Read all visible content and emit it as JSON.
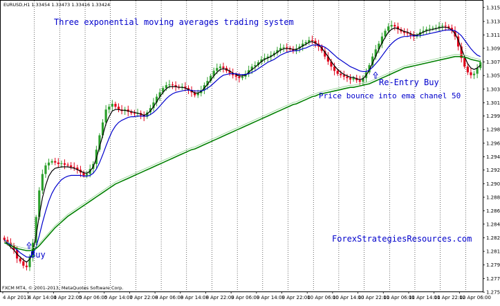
{
  "chart_data": {
    "type": "candlestick",
    "header": "EURUSD,H1  1.33454 1.33473 1.33416 1.33424",
    "footer": "FXCM MT4, © 2001-2013, MetaQuotes Software Corp.",
    "title": "Three exponential moving averages trading system",
    "watermark": "ForexStrategiesResources.com",
    "ylim": [
      1.2754,
      1.316
    ],
    "y_ticks": [
      "1.31505",
      "1.31310",
      "1.31120",
      "1.30935",
      "1.30745",
      "1.30555",
      "1.30365",
      "1.30175",
      "1.29990",
      "1.29800",
      "1.29610",
      "1.29420",
      "1.29235",
      "1.29045",
      "1.28855",
      "1.28665",
      "1.28480",
      "1.28290",
      "1.28100",
      "1.27910",
      "1.27720",
      "1.27530"
    ],
    "x_ticks": [
      "4 Apr 2013",
      "4 Apr 14:00",
      "4 Apr 22:00",
      "5 Apr 06:00",
      "5 Apr 14:00",
      "7 Apr 22:00",
      "8 Apr 06:00",
      "8 Apr 14:00",
      "8 Apr 22:00",
      "9 Apr 06:00",
      "9 Apr 14:00",
      "9 Apr 22:00",
      "10 Apr 06:00",
      "10 Apr 14:00",
      "10 Apr 22:00",
      "11 Apr 06:00",
      "11 Apr 14:00",
      "11 Apr 22:00",
      "12 Apr 06:00"
    ],
    "x_range": [
      "4 Apr 2013 06:00",
      "12 Apr 12:00"
    ],
    "bar_interval": "1 hour",
    "candles_close": [
      1.2826,
      1.2822,
      1.2818,
      1.2812,
      1.28,
      1.2796,
      1.279,
      1.2788,
      1.2802,
      1.2822,
      1.2858,
      1.2895,
      1.2918,
      1.293,
      1.2934,
      1.2936,
      1.2934,
      1.2932,
      1.2933,
      1.2931,
      1.293,
      1.2928,
      1.2927,
      1.2924,
      1.292,
      1.2916,
      1.2918,
      1.2925,
      1.2932,
      1.2952,
      1.2972,
      1.299,
      1.3008,
      1.3012,
      1.3016,
      1.3012,
      1.3008,
      1.3006,
      1.3008,
      1.3005,
      1.3003,
      1.3002,
      1.3003,
      1.3,
      1.2998,
      1.3004,
      1.301,
      1.3018,
      1.3026,
      1.3032,
      1.3038,
      1.3042,
      1.3043,
      1.3042,
      1.304,
      1.3039,
      1.304,
      1.3038,
      1.3035,
      1.3032,
      1.3028,
      1.3031,
      1.3035,
      1.3042,
      1.3048,
      1.3055,
      1.3062,
      1.3066,
      1.3068,
      1.3066,
      1.3062,
      1.3059,
      1.3056,
      1.3054,
      1.3052,
      1.3054,
      1.3058,
      1.3063,
      1.3068,
      1.307,
      1.3074,
      1.3078,
      1.308,
      1.3082,
      1.3084,
      1.3087,
      1.3091,
      1.3094,
      1.3095,
      1.3094,
      1.3092,
      1.309,
      1.3093,
      1.3096,
      1.31,
      1.3102,
      1.3105,
      1.3104,
      1.31,
      1.3096,
      1.309,
      1.3082,
      1.3075,
      1.3068,
      1.3062,
      1.3058,
      1.3056,
      1.3054,
      1.3052,
      1.305,
      1.3052,
      1.3049,
      1.3047,
      1.3052,
      1.306,
      1.307,
      1.3082,
      1.3092,
      1.31,
      1.311,
      1.3118,
      1.3124,
      1.3126,
      1.3124,
      1.312,
      1.3117,
      1.3115,
      1.3114,
      1.3112,
      1.311,
      1.3112,
      1.3116,
      1.3118,
      1.312,
      1.3121,
      1.3122,
      1.3122,
      1.3124,
      1.3125,
      1.3124,
      1.3122,
      1.3118,
      1.311,
      1.3096,
      1.308,
      1.3068,
      1.306,
      1.3056,
      1.3058,
      1.3066,
      1.3074
    ],
    "series": [
      {
        "color": "#000000",
        "values": [
          1.2826,
          1.282,
          1.2816,
          1.2812,
          1.2806,
          1.2802,
          1.2798,
          1.2795,
          1.2799,
          1.281,
          1.2832,
          1.286,
          1.2885,
          1.2902,
          1.2915,
          1.2922,
          1.2926,
          1.2927,
          1.2928,
          1.2928,
          1.2928,
          1.2927,
          1.2926,
          1.2924,
          1.2922,
          1.292,
          1.2919,
          1.2922,
          1.2928,
          1.294,
          1.2956,
          1.2972,
          1.2988,
          1.2998,
          1.3006,
          1.3008,
          1.3008,
          1.3007,
          1.3007,
          1.3006,
          1.3005,
          1.3004,
          1.3003,
          1.3002,
          1.3,
          1.3002,
          1.3006,
          1.3012,
          1.3019,
          1.3026,
          1.3032,
          1.3037,
          1.304,
          1.304,
          1.304,
          1.3039,
          1.3039,
          1.3038,
          1.3036,
          1.3034,
          1.3031,
          1.3031,
          1.3033,
          1.3038,
          1.3043,
          1.3049,
          1.3055,
          1.306,
          1.3064,
          1.3065,
          1.3064,
          1.3062,
          1.3059,
          1.3057,
          1.3055,
          1.3055,
          1.3056,
          1.306,
          1.3064,
          1.3067,
          1.3071,
          1.3075,
          1.3078,
          1.308,
          1.3082,
          1.3085,
          1.3088,
          1.3091,
          1.3093,
          1.3093,
          1.3093,
          1.3092,
          1.3092,
          1.3094,
          1.3097,
          1.3099,
          1.3102,
          1.3103,
          1.3101,
          1.3098,
          1.3094,
          1.3088,
          1.3082,
          1.3075,
          1.3069,
          1.3064,
          1.306,
          1.3057,
          1.3055,
          1.3053,
          1.3053,
          1.3051,
          1.305,
          1.3051,
          1.3056,
          1.3063,
          1.3073,
          1.3083,
          1.3092,
          1.3101,
          1.3109,
          1.3116,
          1.312,
          1.3122,
          1.3121,
          1.3119,
          1.3117,
          1.3116,
          1.3114,
          1.3112,
          1.3112,
          1.3114,
          1.3116,
          1.3118,
          1.3119,
          1.312,
          1.3121,
          1.3122,
          1.3123,
          1.3123,
          1.3122,
          1.3119,
          1.3114,
          1.3105,
          1.3093,
          1.3082,
          1.3072,
          1.3066,
          1.3064,
          1.3066,
          1.307
        ]
      },
      {
        "color": "#0000cc",
        "values": [
          1.2826,
          1.2822,
          1.2819,
          1.2816,
          1.2812,
          1.2808,
          1.2805,
          1.2802,
          1.2802,
          1.2806,
          1.2816,
          1.2832,
          1.285,
          1.2866,
          1.288,
          1.2891,
          1.2899,
          1.2905,
          1.291,
          1.2913,
          1.2915,
          1.2916,
          1.2916,
          1.2916,
          1.2916,
          1.2915,
          1.2915,
          1.2916,
          1.2919,
          1.2925,
          1.2934,
          1.2945,
          1.2957,
          1.2968,
          1.2978,
          1.2985,
          1.299,
          1.2993,
          1.2995,
          1.2997,
          1.2998,
          1.2998,
          1.2999,
          1.2999,
          1.2999,
          1.2999,
          1.3001,
          1.3004,
          1.3008,
          1.3013,
          1.3018,
          1.3023,
          1.3027,
          1.303,
          1.3032,
          1.3033,
          1.3034,
          1.3035,
          1.3035,
          1.3035,
          1.3034,
          1.3034,
          1.3034,
          1.3035,
          1.3038,
          1.3041,
          1.3045,
          1.3049,
          1.3053,
          1.3056,
          1.3057,
          1.3058,
          1.3058,
          1.3058,
          1.3057,
          1.3057,
          1.3057,
          1.3058,
          1.306,
          1.3062,
          1.3065,
          1.3068,
          1.3071,
          1.3074,
          1.3076,
          1.3078,
          1.3081,
          1.3084,
          1.3086,
          1.3088,
          1.3089,
          1.309,
          1.309,
          1.3091,
          1.3093,
          1.3094,
          1.3096,
          1.3098,
          1.3098,
          1.3098,
          1.3097,
          1.3095,
          1.3092,
          1.3088,
          1.3084,
          1.308,
          1.3077,
          1.3074,
          1.3071,
          1.3068,
          1.3066,
          1.3064,
          1.3062,
          1.3061,
          1.3061,
          1.3063,
          1.3067,
          1.3072,
          1.3077,
          1.3083,
          1.3089,
          1.3095,
          1.31,
          1.3104,
          1.3107,
          1.3109,
          1.311,
          1.311,
          1.3111,
          1.3111,
          1.3111,
          1.3111,
          1.3112,
          1.3113,
          1.3114,
          1.3115,
          1.3116,
          1.3117,
          1.3118,
          1.3119,
          1.3119,
          1.3119,
          1.3118,
          1.3115,
          1.3111,
          1.3105,
          1.3099,
          1.3093,
          1.3088,
          1.3084,
          1.3082
        ]
      },
      {
        "color": "#008000",
        "values": [
          1.2822,
          1.282,
          1.2818,
          1.2816,
          1.2814,
          1.2813,
          1.2812,
          1.2811,
          1.2811,
          1.2812,
          1.2814,
          1.2818,
          1.2823,
          1.2828,
          1.2833,
          1.2838,
          1.2843,
          1.2847,
          1.2851,
          1.2855,
          1.2859,
          1.2862,
          1.2865,
          1.2868,
          1.2871,
          1.2874,
          1.2877,
          1.288,
          1.2883,
          1.2886,
          1.2889,
          1.2892,
          1.2895,
          1.2898,
          1.2901,
          1.2904,
          1.2906,
          1.2908,
          1.291,
          1.2912,
          1.2914,
          1.2916,
          1.2918,
          1.292,
          1.2922,
          1.2924,
          1.2926,
          1.2928,
          1.293,
          1.2932,
          1.2934,
          1.2936,
          1.2938,
          1.294,
          1.2942,
          1.2944,
          1.2946,
          1.2948,
          1.295,
          1.2952,
          1.2953,
          1.2955,
          1.2957,
          1.2959,
          1.2961,
          1.2963,
          1.2965,
          1.2967,
          1.2969,
          1.2971,
          1.2973,
          1.2975,
          1.2977,
          1.2979,
          1.2981,
          1.2983,
          1.2985,
          1.2987,
          1.2989,
          1.2991,
          1.2993,
          1.2995,
          1.2997,
          1.2999,
          1.3001,
          1.3003,
          1.3005,
          1.3007,
          1.3009,
          1.3011,
          1.3013,
          1.3015,
          1.3016,
          1.3018,
          1.302,
          1.3022,
          1.3024,
          1.3026,
          1.3027,
          1.3029,
          1.303,
          1.3031,
          1.3032,
          1.3033,
          1.3034,
          1.3035,
          1.3036,
          1.3037,
          1.3038,
          1.3039,
          1.3039,
          1.304,
          1.3041,
          1.3042,
          1.3043,
          1.3044,
          1.3046,
          1.3048,
          1.305,
          1.3052,
          1.3054,
          1.3056,
          1.3058,
          1.306,
          1.3062,
          1.3064,
          1.3066,
          1.3067,
          1.3068,
          1.3069,
          1.307,
          1.3071,
          1.3072,
          1.3073,
          1.3074,
          1.3075,
          1.3076,
          1.3077,
          1.3078,
          1.3079,
          1.308,
          1.3081,
          1.3082,
          1.3082,
          1.3082,
          1.3081,
          1.308,
          1.3078,
          1.3077,
          1.3076,
          1.3075
        ]
      }
    ],
    "annotations": [
      {
        "text": "Buy",
        "x": "4 Apr 13:00",
        "y": 1.2792,
        "color": "#0000cc"
      },
      {
        "text": "Re-Entry Buy",
        "x": "10 Apr 20:00",
        "y": 1.3048,
        "color": "#0000cc"
      },
      {
        "text": "Price bounce into ema chanel 50",
        "x": "10 Apr 12:00",
        "y": 1.302,
        "color": "#0000cc"
      }
    ],
    "grid": "vertical dotted at session breaks",
    "colors": {
      "bull": "#2ca02c",
      "bear": "#e0001a",
      "background": "#ffffff"
    }
  }
}
